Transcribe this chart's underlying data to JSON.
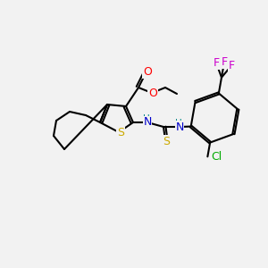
{
  "bg_color": "#f2f2f2",
  "atom_colors": {
    "C": "#000000",
    "O": "#ff0000",
    "N": "#0000cc",
    "S_ring": "#ccaa00",
    "S_thio": "#ccaa00",
    "F": "#cc00cc",
    "Cl": "#00aa00",
    "H": "#008888"
  },
  "figsize": [
    3.0,
    3.0
  ],
  "dpi": 100,
  "lw": 1.5,
  "font_size": 8.5
}
